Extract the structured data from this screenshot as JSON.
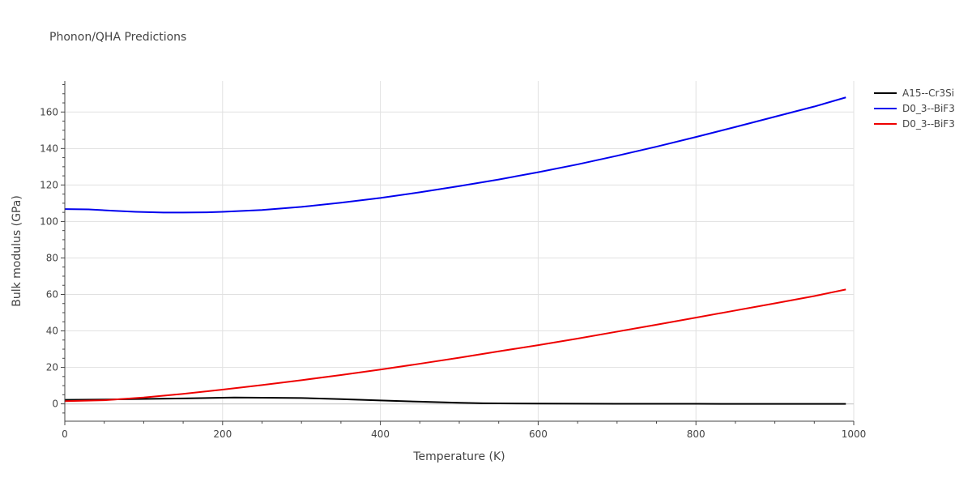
{
  "chart_data": {
    "type": "line",
    "title": "Phonon/QHA Predictions",
    "xlabel": "Temperature (K)",
    "ylabel": "Bulk modulus (GPa)",
    "xlim": [
      0,
      1000
    ],
    "ylim": [
      -9.5,
      177
    ],
    "x_ticks": [
      0,
      200,
      400,
      600,
      800,
      1000
    ],
    "y_ticks": [
      0,
      20,
      40,
      60,
      80,
      100,
      120,
      140,
      160
    ],
    "grid": true,
    "legend_position": "top-right",
    "series": [
      {
        "name": "A15--Cr3Si",
        "color": "#000000",
        "x": [
          0,
          50,
          100,
          150,
          200,
          215,
          250,
          300,
          350,
          400,
          450,
          500,
          530,
          600,
          700,
          800,
          900,
          990
        ],
        "y": [
          2.2,
          2.4,
          2.7,
          3.0,
          3.4,
          3.5,
          3.4,
          3.2,
          2.6,
          1.9,
          1.2,
          0.6,
          0.3,
          0.15,
          0.05,
          0.02,
          0.01,
          0.0
        ]
      },
      {
        "name": "D0_3--BiF3",
        "color": "#0000ee",
        "x": [
          0,
          30,
          60,
          90,
          125,
          150,
          180,
          200,
          250,
          300,
          350,
          400,
          450,
          500,
          550,
          600,
          650,
          700,
          750,
          800,
          850,
          900,
          950,
          990
        ],
        "y": [
          106.8,
          106.6,
          105.9,
          105.3,
          104.9,
          104.9,
          105.0,
          105.3,
          106.3,
          108.0,
          110.3,
          112.9,
          116.0,
          119.4,
          123.0,
          127.0,
          131.3,
          136.0,
          141.0,
          146.3,
          151.8,
          157.4,
          163.0,
          168.0
        ]
      },
      {
        "name": "D0_3--BiF3",
        "color": "#ee0000",
        "x": [
          0,
          50,
          100,
          150,
          200,
          250,
          300,
          350,
          400,
          450,
          500,
          550,
          600,
          650,
          700,
          750,
          800,
          850,
          900,
          950,
          990
        ],
        "y": [
          1.5,
          2.0,
          3.5,
          5.5,
          7.8,
          10.3,
          13.0,
          15.8,
          18.8,
          22.0,
          25.3,
          28.8,
          32.2,
          35.8,
          39.6,
          43.4,
          47.3,
          51.2,
          55.1,
          59.1,
          62.7
        ]
      }
    ]
  }
}
